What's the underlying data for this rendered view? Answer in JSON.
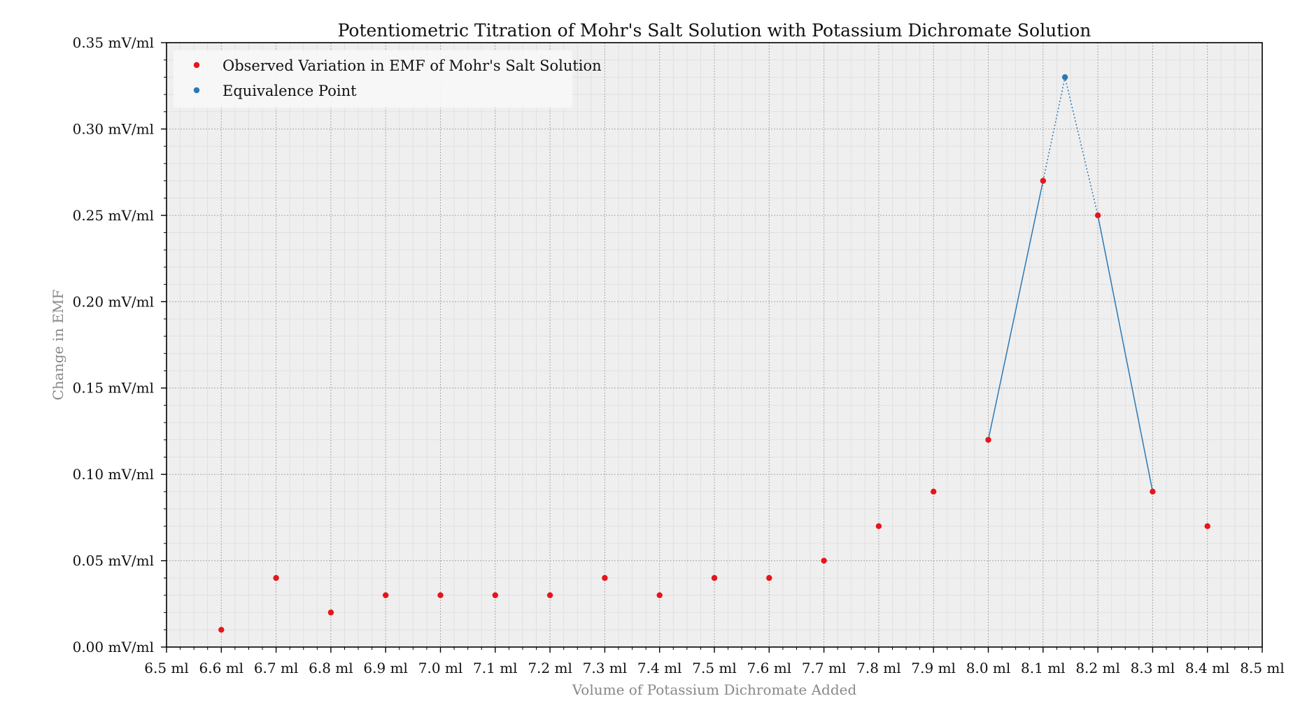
{
  "chart_data": {
    "type": "scatter",
    "title": "Potentiometric Titration of Mohr's Salt Solution with Potassium Dichromate Solution",
    "xlabel": "Volume of Potassium Dichromate Added",
    "ylabel": "Change in EMF",
    "x_unit": "ml",
    "y_unit": "mV/ml",
    "xlim": [
      6.5,
      8.5
    ],
    "ylim": [
      0.0,
      0.35
    ],
    "x_ticks": [
      "6.5 ml",
      "6.6 ml",
      "6.7 ml",
      "6.8 ml",
      "6.9 ml",
      "7.0 ml",
      "7.1 ml",
      "7.2 ml",
      "7.3 ml",
      "7.4 ml",
      "7.5 ml",
      "7.6 ml",
      "7.7 ml",
      "7.8 ml",
      "7.9 ml",
      "8.0 ml",
      "8.1 ml",
      "8.2 ml",
      "8.3 ml",
      "8.4 ml",
      "8.5 ml"
    ],
    "y_ticks": [
      "0.00 mV/ml",
      "0.05 mV/ml",
      "0.10 mV/ml",
      "0.15 mV/ml",
      "0.20 mV/ml",
      "0.25 mV/ml",
      "0.30 mV/ml",
      "0.35 mV/ml"
    ],
    "grid": true,
    "legend_position": "top-left",
    "series": [
      {
        "name": "Observed Variation in EMF of Mohr's Salt Solution",
        "color": "#e8141b",
        "x": [
          6.6,
          6.7,
          6.8,
          6.9,
          7.0,
          7.1,
          7.2,
          7.3,
          7.4,
          7.5,
          7.6,
          7.7,
          7.8,
          7.9,
          8.0,
          8.1,
          8.2,
          8.3,
          8.4
        ],
        "y": [
          0.01,
          0.04,
          0.02,
          0.03,
          0.03,
          0.03,
          0.03,
          0.04,
          0.03,
          0.04,
          0.04,
          0.05,
          0.07,
          0.09,
          0.12,
          0.27,
          0.25,
          0.09,
          0.07
        ]
      },
      {
        "name": "Equivalence Point",
        "color": "#2b78b4",
        "x": [
          8.14
        ],
        "y": [
          0.33
        ]
      }
    ],
    "lines": [
      {
        "style": "solid",
        "color": "#2b78b4",
        "x": [
          8.0,
          8.1
        ],
        "y": [
          0.12,
          0.27
        ]
      },
      {
        "style": "dotted",
        "color": "#2b78b4",
        "x": [
          8.1,
          8.14,
          8.2
        ],
        "y": [
          0.27,
          0.33,
          0.25
        ]
      },
      {
        "style": "solid",
        "color": "#2b78b4",
        "x": [
          8.2,
          8.3
        ],
        "y": [
          0.25,
          0.09
        ]
      }
    ]
  }
}
